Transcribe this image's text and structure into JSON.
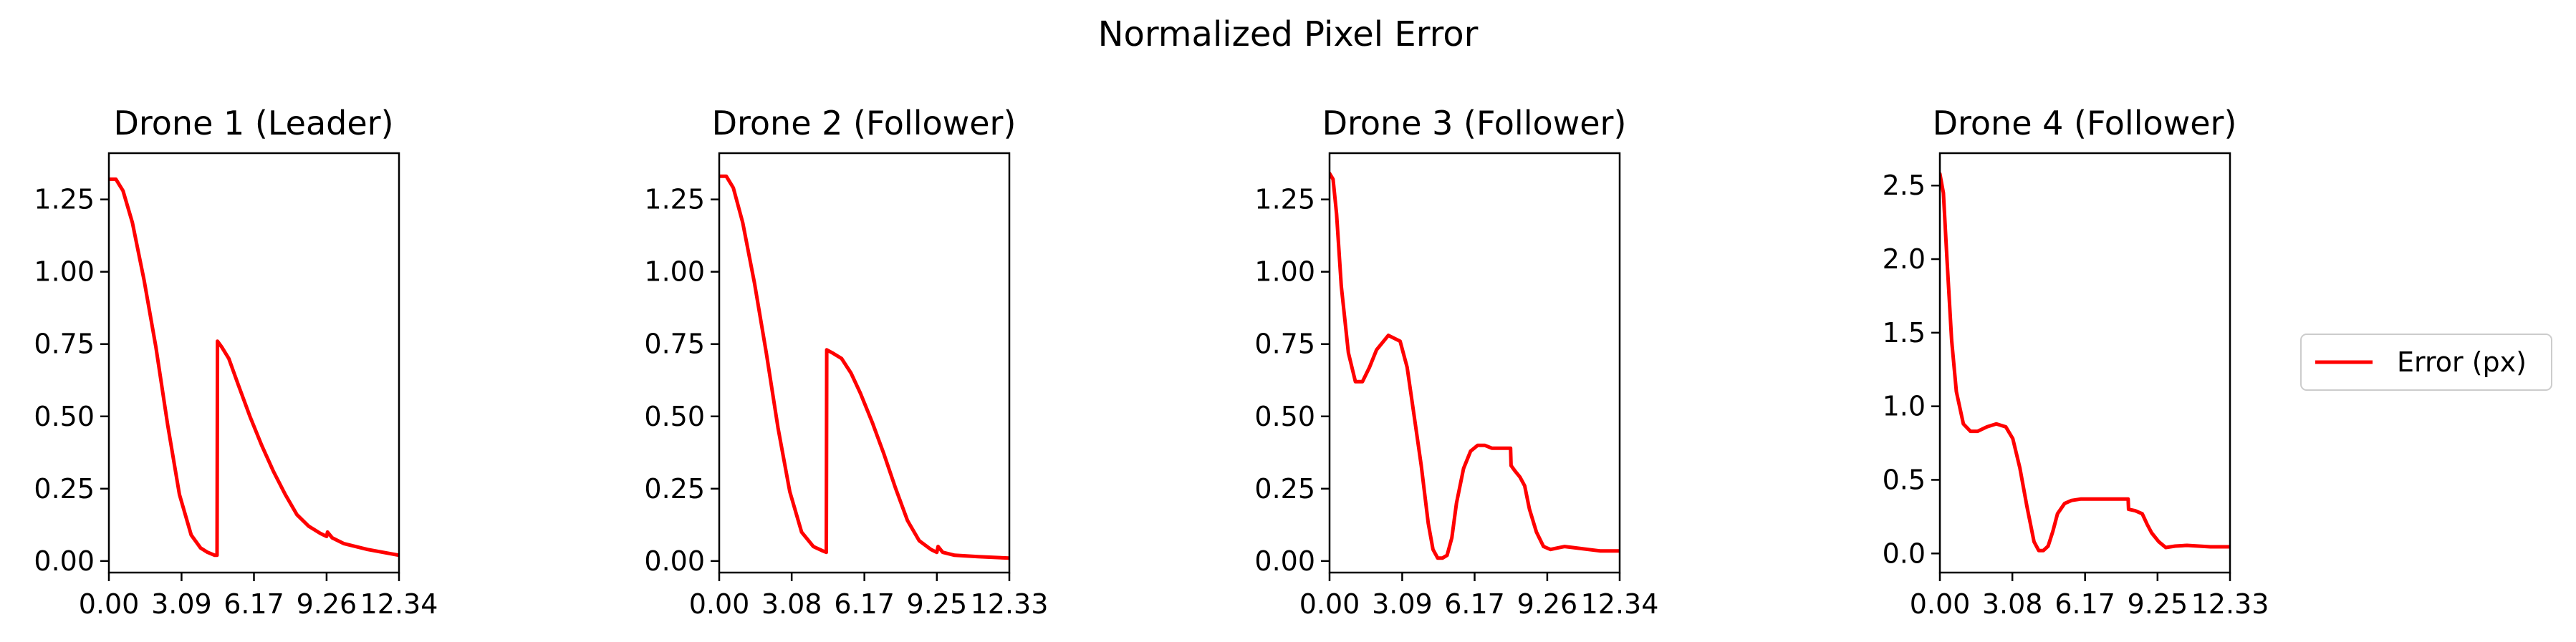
{
  "figure_title": "Normalized Pixel Error",
  "legend": {
    "label": "Error (px)",
    "color": "#ff0000",
    "placement": "right"
  },
  "chart_data": [
    {
      "type": "line",
      "title": "Drone 1 (Leader)",
      "xlim": [
        0,
        12.34
      ],
      "ylim": [
        -0.04,
        1.41
      ],
      "xticks": [
        "0.00",
        "3.09",
        "6.17",
        "9.26",
        "12.34"
      ],
      "yticks": [
        "0.00",
        "0.25",
        "0.50",
        "0.75",
        "1.00",
        "1.25"
      ],
      "series": [
        {
          "name": "Error (px)",
          "color": "#ff0000",
          "x": [
            0,
            0.3,
            0.6,
            1.0,
            1.5,
            2.0,
            2.5,
            3.0,
            3.5,
            3.9,
            4.2,
            4.5,
            4.6,
            4.62,
            4.8,
            5.1,
            5.5,
            6.0,
            6.5,
            7.0,
            7.5,
            8.0,
            8.5,
            9.0,
            9.26,
            9.3,
            9.5,
            10.0,
            11.0,
            12.34
          ],
          "values": [
            1.32,
            1.32,
            1.28,
            1.17,
            0.97,
            0.74,
            0.47,
            0.23,
            0.09,
            0.045,
            0.03,
            0.02,
            0.02,
            0.76,
            0.74,
            0.7,
            0.61,
            0.5,
            0.4,
            0.31,
            0.23,
            0.16,
            0.12,
            0.095,
            0.085,
            0.1,
            0.08,
            0.06,
            0.04,
            0.02
          ]
        }
      ]
    },
    {
      "type": "line",
      "title": "Drone 2 (Follower)",
      "xlim": [
        0,
        12.33
      ],
      "ylim": [
        -0.04,
        1.41
      ],
      "xticks": [
        "0.00",
        "3.08",
        "6.17",
        "9.25",
        "12.33"
      ],
      "yticks": [
        "0.00",
        "0.25",
        "0.50",
        "0.75",
        "1.00",
        "1.25"
      ],
      "series": [
        {
          "name": "Error (px)",
          "color": "#ff0000",
          "x": [
            0,
            0.3,
            0.6,
            1.0,
            1.5,
            2.0,
            2.5,
            3.0,
            3.5,
            4.0,
            4.4,
            4.55,
            4.57,
            4.8,
            5.2,
            5.6,
            6.0,
            6.5,
            7.0,
            7.5,
            8.0,
            8.5,
            9.0,
            9.25,
            9.3,
            9.5,
            10.0,
            11.0,
            12.33
          ],
          "values": [
            1.33,
            1.33,
            1.29,
            1.17,
            0.96,
            0.72,
            0.46,
            0.24,
            0.1,
            0.05,
            0.035,
            0.03,
            0.73,
            0.72,
            0.7,
            0.65,
            0.58,
            0.48,
            0.37,
            0.25,
            0.14,
            0.07,
            0.04,
            0.03,
            0.05,
            0.03,
            0.02,
            0.015,
            0.01
          ]
        }
      ]
    },
    {
      "type": "line",
      "title": "Drone 3 (Follower)",
      "xlim": [
        0,
        12.34
      ],
      "ylim": [
        -0.04,
        1.41
      ],
      "xticks": [
        "0.00",
        "3.09",
        "6.17",
        "9.26",
        "12.34"
      ],
      "yticks": [
        "0.00",
        "0.25",
        "0.50",
        "0.75",
        "1.00",
        "1.25"
      ],
      "series": [
        {
          "name": "Error (px)",
          "color": "#ff0000",
          "x": [
            0,
            0.15,
            0.3,
            0.5,
            0.8,
            1.1,
            1.4,
            1.7,
            2.0,
            2.5,
            3.0,
            3.3,
            3.6,
            3.9,
            4.2,
            4.4,
            4.6,
            4.8,
            5.0,
            5.2,
            5.4,
            5.7,
            6.0,
            6.3,
            6.6,
            6.9,
            7.2,
            7.5,
            7.7,
            7.72,
            7.9,
            8.1,
            8.3,
            8.5,
            8.8,
            9.1,
            9.4,
            9.7,
            10.0,
            10.5,
            11.0,
            11.5,
            12.34
          ],
          "values": [
            1.34,
            1.32,
            1.2,
            0.95,
            0.72,
            0.62,
            0.62,
            0.67,
            0.73,
            0.78,
            0.76,
            0.67,
            0.5,
            0.33,
            0.13,
            0.04,
            0.01,
            0.01,
            0.02,
            0.08,
            0.2,
            0.32,
            0.38,
            0.4,
            0.4,
            0.39,
            0.39,
            0.39,
            0.39,
            0.33,
            0.31,
            0.29,
            0.26,
            0.18,
            0.1,
            0.05,
            0.04,
            0.045,
            0.05,
            0.045,
            0.04,
            0.035,
            0.035
          ]
        }
      ]
    },
    {
      "type": "line",
      "title": "Drone 4 (Follower)",
      "xlim": [
        0,
        12.33
      ],
      "ylim": [
        -0.13,
        2.72
      ],
      "xticks": [
        "0.00",
        "3.08",
        "6.17",
        "9.25",
        "12.33"
      ],
      "yticks": [
        "0.0",
        "0.5",
        "1.0",
        "1.5",
        "2.0",
        "2.5"
      ],
      "series": [
        {
          "name": "Error (px)",
          "color": "#ff0000",
          "x": [
            0,
            0.15,
            0.3,
            0.5,
            0.7,
            1.0,
            1.3,
            1.6,
            2.0,
            2.4,
            2.8,
            3.1,
            3.4,
            3.7,
            4.0,
            4.2,
            4.4,
            4.6,
            4.8,
            5.0,
            5.3,
            5.6,
            6.0,
            6.5,
            7.0,
            7.5,
            7.8,
            8.0,
            8.02,
            8.3,
            8.6,
            8.8,
            9.0,
            9.3,
            9.6,
            10.0,
            10.5,
            11.0,
            11.5,
            12.33
          ],
          "values": [
            2.58,
            2.45,
            2.0,
            1.45,
            1.1,
            0.88,
            0.83,
            0.83,
            0.86,
            0.88,
            0.86,
            0.78,
            0.58,
            0.32,
            0.08,
            0.02,
            0.02,
            0.05,
            0.15,
            0.27,
            0.34,
            0.36,
            0.37,
            0.37,
            0.37,
            0.37,
            0.37,
            0.37,
            0.3,
            0.29,
            0.27,
            0.2,
            0.14,
            0.08,
            0.04,
            0.05,
            0.055,
            0.05,
            0.045,
            0.045
          ]
        }
      ]
    }
  ]
}
